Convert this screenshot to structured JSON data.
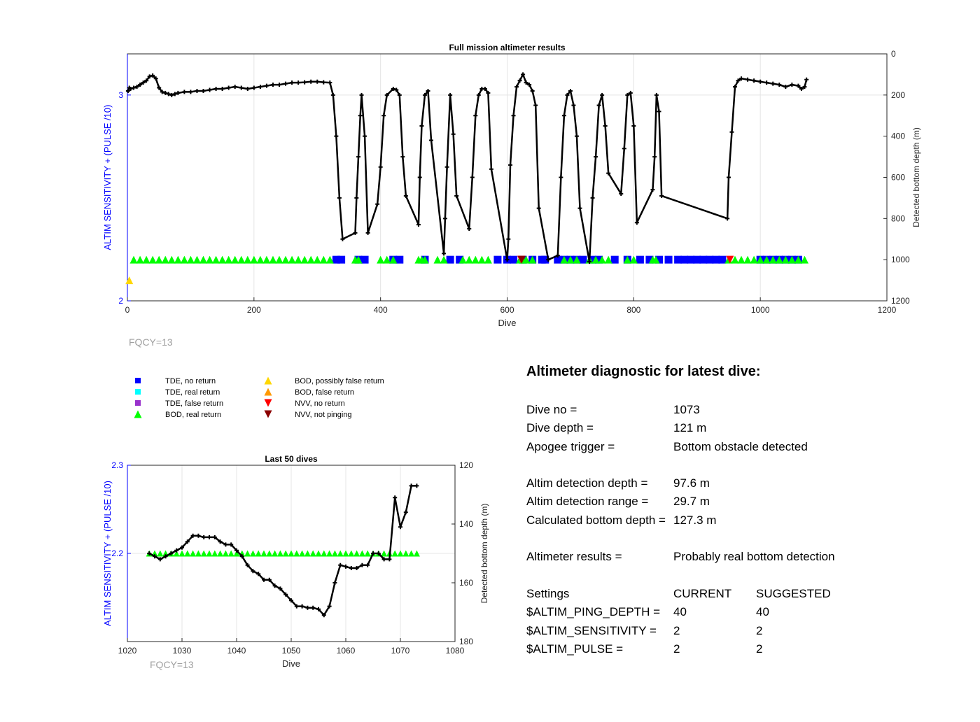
{
  "colors": {
    "left_axis": "#0000ff",
    "right_axis": "#000000",
    "tde_no_return": "#0000ff",
    "tde_real_return": "#00ffff",
    "tde_false_return": "#9932cc",
    "bod_real_return": "#00ff00",
    "bod_possibly_false": "#ffd700",
    "bod_false_return": "#ff9900",
    "nvv_no_return": "#ff0000",
    "nvv_not_pinging": "#8b0000",
    "depth_line": "#000000",
    "fqcy": "#a0a0a0"
  },
  "chart_data": [
    {
      "type": "scatter",
      "title": "Full mission altimeter results",
      "xlabel": "Dive",
      "ylabel": "ALTIM SENSITIVITY + (PULSE /10)",
      "ylabel_right": "Detected bottom depth (m)",
      "xlim": [
        0,
        1200
      ],
      "ylim": [
        2,
        3.2
      ],
      "ylim_right": [
        0,
        1200
      ],
      "right_reversed": true,
      "x_ticks": [
        "0",
        "200",
        "400",
        "600",
        "800",
        "1000",
        "1200"
      ],
      "y_ticks": [
        "2",
        "3"
      ],
      "y_ticks_right": [
        "0",
        "200",
        "400",
        "600",
        "800",
        "1000",
        "1200"
      ],
      "grid": true,
      "note": "FQCY=13",
      "series": [
        {
          "name": "Detected bottom depth",
          "axis": "right",
          "x": [
            1,
            3,
            5,
            10,
            15,
            20,
            25,
            30,
            35,
            40,
            45,
            50,
            55,
            60,
            65,
            70,
            75,
            80,
            90,
            100,
            110,
            120,
            130,
            140,
            150,
            160,
            170,
            180,
            190,
            200,
            210,
            220,
            230,
            240,
            250,
            260,
            270,
            280,
            290,
            300,
            310,
            320,
            325,
            330,
            335,
            340,
            360,
            362,
            365,
            368,
            370,
            375,
            380,
            395,
            400,
            405,
            410,
            420,
            425,
            430,
            435,
            440,
            460,
            462,
            465,
            470,
            475,
            480,
            500,
            502,
            505,
            510,
            515,
            520,
            540,
            545,
            550,
            555,
            560,
            565,
            570,
            575,
            600,
            602,
            605,
            610,
            615,
            620,
            625,
            630,
            635,
            640,
            645,
            650,
            665,
            680,
            685,
            690,
            695,
            700,
            705,
            710,
            715,
            730,
            735,
            740,
            745,
            750,
            755,
            760,
            780,
            785,
            790,
            795,
            800,
            805,
            830,
            833,
            836,
            840,
            844,
            948,
            950,
            955,
            960,
            965,
            970,
            980,
            990,
            1000,
            1010,
            1020,
            1030,
            1040,
            1050,
            1060,
            1065,
            1070,
            1073
          ],
          "y": [
            180,
            165,
            170,
            165,
            160,
            150,
            140,
            130,
            110,
            105,
            120,
            165,
            185,
            190,
            195,
            200,
            195,
            190,
            185,
            185,
            180,
            180,
            175,
            170,
            170,
            165,
            160,
            165,
            170,
            165,
            160,
            155,
            150,
            150,
            145,
            140,
            140,
            138,
            135,
            135,
            138,
            140,
            200,
            400,
            700,
            900,
            870,
            700,
            500,
            300,
            200,
            400,
            870,
            730,
            550,
            300,
            200,
            170,
            175,
            200,
            500,
            690,
            830,
            600,
            350,
            200,
            180,
            420,
            970,
            800,
            550,
            200,
            390,
            690,
            850,
            600,
            300,
            200,
            170,
            170,
            190,
            560,
            1000,
            900,
            540,
            300,
            160,
            130,
            100,
            140,
            150,
            180,
            250,
            750,
            1000,
            980,
            600,
            300,
            200,
            180,
            250,
            400,
            750,
            1010,
            700,
            500,
            250,
            200,
            350,
            580,
            680,
            460,
            200,
            190,
            350,
            820,
            660,
            500,
            200,
            280,
            690,
            800,
            600,
            380,
            160,
            130,
            120,
            125,
            130,
            135,
            140,
            145,
            150,
            160,
            150,
            155,
            170,
            160,
            125
          ]
        },
        {
          "name": "TDE, no return",
          "axis": "left",
          "x": [
            330,
            338,
            365,
            375,
            420,
            430,
            470,
            510,
            525,
            585,
            600,
            610,
            625,
            640,
            655,
            660,
            680,
            690,
            700,
            710,
            720,
            735,
            745,
            770,
            790,
            810,
            825,
            840,
            855,
            870,
            880,
            890,
            900,
            910,
            920,
            930,
            940,
            1000,
            1010,
            1020,
            1030,
            1040,
            1050,
            1060
          ],
          "y": [
            2.2,
            2.2,
            2.2,
            2.2,
            2.2,
            2.2,
            2.2,
            2.2,
            2.2,
            2.2,
            2.2,
            2.2,
            2.2,
            2.2,
            2.2,
            2.2,
            2.2,
            2.2,
            2.2,
            2.2,
            2.2,
            2.2,
            2.2,
            2.2,
            2.2,
            2.2,
            2.2,
            2.2,
            2.2,
            2.2,
            2.2,
            2.2,
            2.2,
            2.2,
            2.2,
            2.2,
            2.2,
            2.2,
            2.2,
            2.2,
            2.2,
            2.2,
            2.2,
            2.2
          ]
        },
        {
          "name": "BOD, real return",
          "axis": "left",
          "x": [
            10,
            20,
            30,
            40,
            50,
            60,
            70,
            80,
            90,
            100,
            110,
            120,
            130,
            140,
            150,
            160,
            170,
            180,
            190,
            200,
            210,
            220,
            230,
            240,
            250,
            260,
            270,
            280,
            290,
            300,
            310,
            320,
            360,
            365,
            400,
            410,
            420,
            460,
            465,
            470,
            490,
            500,
            530,
            540,
            550,
            560,
            570,
            620,
            625,
            630,
            640,
            690,
            700,
            710,
            730,
            740,
            750,
            760,
            790,
            800,
            830,
            835,
            950,
            960,
            970,
            980,
            990,
            1000,
            1010,
            1020,
            1030,
            1040,
            1050,
            1060,
            1070
          ],
          "y": [
            2.2,
            2.2,
            2.2,
            2.2,
            2.2,
            2.2,
            2.2,
            2.2,
            2.2,
            2.2,
            2.2,
            2.2,
            2.2,
            2.2,
            2.2,
            2.2,
            2.2,
            2.2,
            2.2,
            2.2,
            2.2,
            2.2,
            2.2,
            2.2,
            2.2,
            2.2,
            2.2,
            2.2,
            2.2,
            2.2,
            2.2,
            2.2,
            2.2,
            2.2,
            2.2,
            2.2,
            2.2,
            2.2,
            2.2,
            2.2,
            2.2,
            2.2,
            2.2,
            2.2,
            2.2,
            2.2,
            2.2,
            2.2,
            2.2,
            2.2,
            2.2,
            2.2,
            2.2,
            2.2,
            2.2,
            2.2,
            2.2,
            2.2,
            2.2,
            2.2,
            2.2,
            2.2,
            2.2,
            2.2,
            2.2,
            2.2,
            2.2,
            2.2,
            2.2,
            2.2,
            2.2,
            2.2,
            2.2,
            2.2,
            2.2
          ]
        },
        {
          "name": "NVV, no return",
          "axis": "left",
          "x": [
            622,
            952
          ],
          "y": [
            2.2,
            2.2
          ]
        },
        {
          "name": "NVV, not pinging",
          "axis": "left",
          "x": [
            623
          ],
          "y": [
            2.2
          ]
        },
        {
          "name": "BOD, possibly false return",
          "axis": "left",
          "x": [
            3
          ],
          "y": [
            2.1
          ]
        }
      ]
    },
    {
      "type": "scatter",
      "title": "Last 50 dives",
      "xlabel": "Dive",
      "ylabel": "ALTIM SENSITIVITY + (PULSE /10)",
      "ylabel_right": "Detected bottom depth (m)",
      "xlim": [
        1020,
        1080
      ],
      "ylim": [
        2.1,
        2.3
      ],
      "ylim_right": [
        120,
        180
      ],
      "right_reversed": true,
      "x_ticks": [
        "1020",
        "1030",
        "1040",
        "1050",
        "1060",
        "1070",
        "1080"
      ],
      "y_ticks": [
        "2.2",
        "2.3"
      ],
      "y_ticks_right": [
        "120",
        "140",
        "160",
        "180"
      ],
      "grid": true,
      "note": "FQCY=13",
      "series": [
        {
          "name": "Detected bottom depth",
          "axis": "right",
          "x": [
            1024,
            1025,
            1026,
            1027,
            1028,
            1029,
            1030,
            1031,
            1032,
            1033,
            1034,
            1035,
            1036,
            1037,
            1038,
            1039,
            1040,
            1041,
            1042,
            1043,
            1044,
            1045,
            1046,
            1047,
            1048,
            1049,
            1050,
            1051,
            1052,
            1053,
            1054,
            1055,
            1056,
            1057,
            1058,
            1059,
            1060,
            1061,
            1062,
            1063,
            1064,
            1065,
            1066,
            1067,
            1068,
            1069,
            1070,
            1071,
            1072,
            1073
          ],
          "y": [
            150,
            151,
            152,
            151,
            150,
            149,
            148,
            146,
            144,
            144,
            144.5,
            144.5,
            144.5,
            146,
            147,
            147,
            149,
            151,
            154,
            156,
            157,
            159,
            159,
            161,
            162,
            164,
            166,
            168,
            168,
            168.5,
            168.5,
            169,
            171,
            168,
            160,
            154,
            154.5,
            155,
            155,
            154,
            154,
            150,
            150,
            152,
            152,
            131,
            141,
            136,
            127,
            127
          ]
        },
        {
          "name": "BOD, real return",
          "axis": "left",
          "x": [
            1024,
            1025,
            1026,
            1027,
            1028,
            1029,
            1030,
            1031,
            1032,
            1033,
            1034,
            1035,
            1036,
            1037,
            1038,
            1039,
            1040,
            1041,
            1042,
            1043,
            1044,
            1045,
            1046,
            1047,
            1048,
            1049,
            1050,
            1051,
            1052,
            1053,
            1054,
            1055,
            1056,
            1057,
            1058,
            1059,
            1060,
            1061,
            1062,
            1063,
            1064,
            1065,
            1066,
            1067,
            1068,
            1069,
            1070,
            1071,
            1072,
            1073
          ],
          "y": [
            2.2,
            2.2,
            2.2,
            2.2,
            2.2,
            2.2,
            2.2,
            2.2,
            2.2,
            2.2,
            2.2,
            2.2,
            2.2,
            2.2,
            2.2,
            2.2,
            2.2,
            2.2,
            2.2,
            2.2,
            2.2,
            2.2,
            2.2,
            2.2,
            2.2,
            2.2,
            2.2,
            2.2,
            2.2,
            2.2,
            2.2,
            2.2,
            2.2,
            2.2,
            2.2,
            2.2,
            2.2,
            2.2,
            2.2,
            2.2,
            2.2,
            2.2,
            2.2,
            2.2,
            2.2,
            2.2,
            2.2,
            2.2,
            2.2,
            2.2
          ]
        }
      ]
    }
  ],
  "legend": [
    {
      "label": "TDE, no return",
      "symbol": "square",
      "color": "#0000ff"
    },
    {
      "label": "TDE, real return",
      "symbol": "square",
      "color": "#00ffff"
    },
    {
      "label": "TDE, false return",
      "symbol": "square",
      "color": "#9932cc"
    },
    {
      "label": "BOD, real return",
      "symbol": "triangle-up",
      "color": "#00ff00"
    },
    {
      "label": "BOD, possibly false return",
      "symbol": "triangle-up",
      "color": "#ffd700"
    },
    {
      "label": "BOD, false return",
      "symbol": "triangle-up",
      "color": "#ff9900"
    },
    {
      "label": "NVV, no return",
      "symbol": "triangle-down",
      "color": "#ff0000"
    },
    {
      "label": "NVV, not pinging",
      "symbol": "triangle-down",
      "color": "#8b0000"
    }
  ],
  "diagnostic": {
    "title": "Altimeter diagnostic for latest dive:",
    "dive_no_label": "Dive no =",
    "dive_no": "1073",
    "dive_depth_label": "Dive depth =",
    "dive_depth": "121 m",
    "apogee_label": "Apogee trigger =",
    "apogee": "Bottom obstacle detected",
    "det_depth_label": "Altim detection depth =",
    "det_depth": "97.6 m",
    "det_range_label": "Altim detection range =",
    "det_range": "29.7 m",
    "bottom_depth_label": "Calculated bottom depth =",
    "bottom_depth": "127.3 m",
    "results_label": "Altimeter results =",
    "results": "Probably real bottom detection",
    "settings_label": "Settings",
    "current_label": "CURRENT",
    "suggested_label": "SUGGESTED",
    "ping_depth_label": "$ALTIM_PING_DEPTH =",
    "ping_depth_current": "40",
    "ping_depth_suggested": "40",
    "sensitivity_label": "$ALTIM_SENSITIVITY =",
    "sensitivity_current": "2",
    "sensitivity_suggested": "2",
    "pulse_label": "$ALTIM_PULSE =",
    "pulse_current": "2",
    "pulse_suggested": "2"
  }
}
